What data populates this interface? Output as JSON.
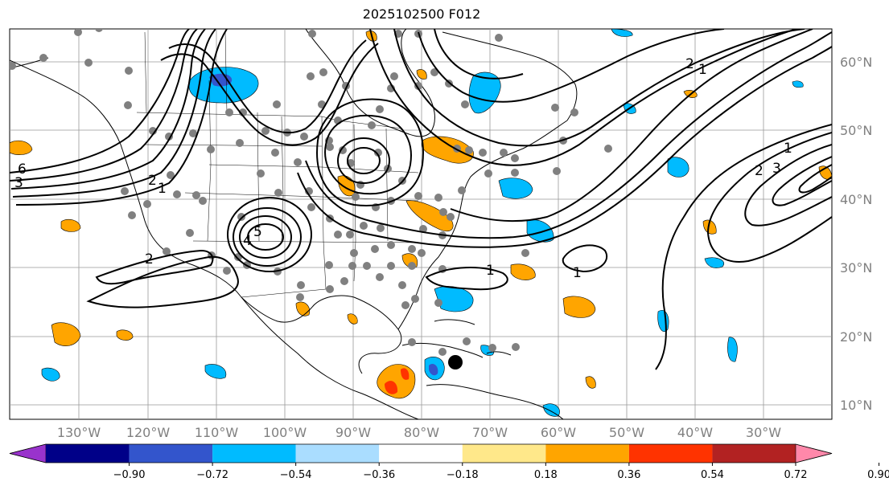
{
  "title": "2025102500 F012",
  "latitude_labels": [
    "60°N",
    "50°N",
    "40°N",
    "30°N",
    "20°N",
    "10°N"
  ],
  "longitude_labels": [
    "130°W",
    "120°W",
    "110°W",
    "100°W",
    "90°W",
    "80°W",
    "70°W",
    "60°W",
    "50°W",
    "40°W",
    "30°W"
  ],
  "contour_labels": [
    "1",
    "1",
    "1",
    "1",
    "2",
    "2",
    "2",
    "3",
    "4",
    "5",
    "6",
    "1",
    "2",
    "3"
  ],
  "colorbar": {
    "colors": [
      "#9933cc",
      "#000088",
      "#3355cc",
      "#00bbff",
      "#aaddff",
      "#ffffff",
      "#ffe88a",
      "#ffa500",
      "#ff3300",
      "#b22222",
      "#ff88aa"
    ],
    "tick_labels": [
      "−0.90",
      "−0.72",
      "−0.54",
      "−0.36",
      "−0.18",
      "0.18",
      "0.36",
      "0.54",
      "0.72",
      "0.90"
    ]
  },
  "colors": {
    "land_outline": "#000000",
    "grid": "#999999",
    "station_dot": "#808080",
    "marker": "#000000"
  }
}
